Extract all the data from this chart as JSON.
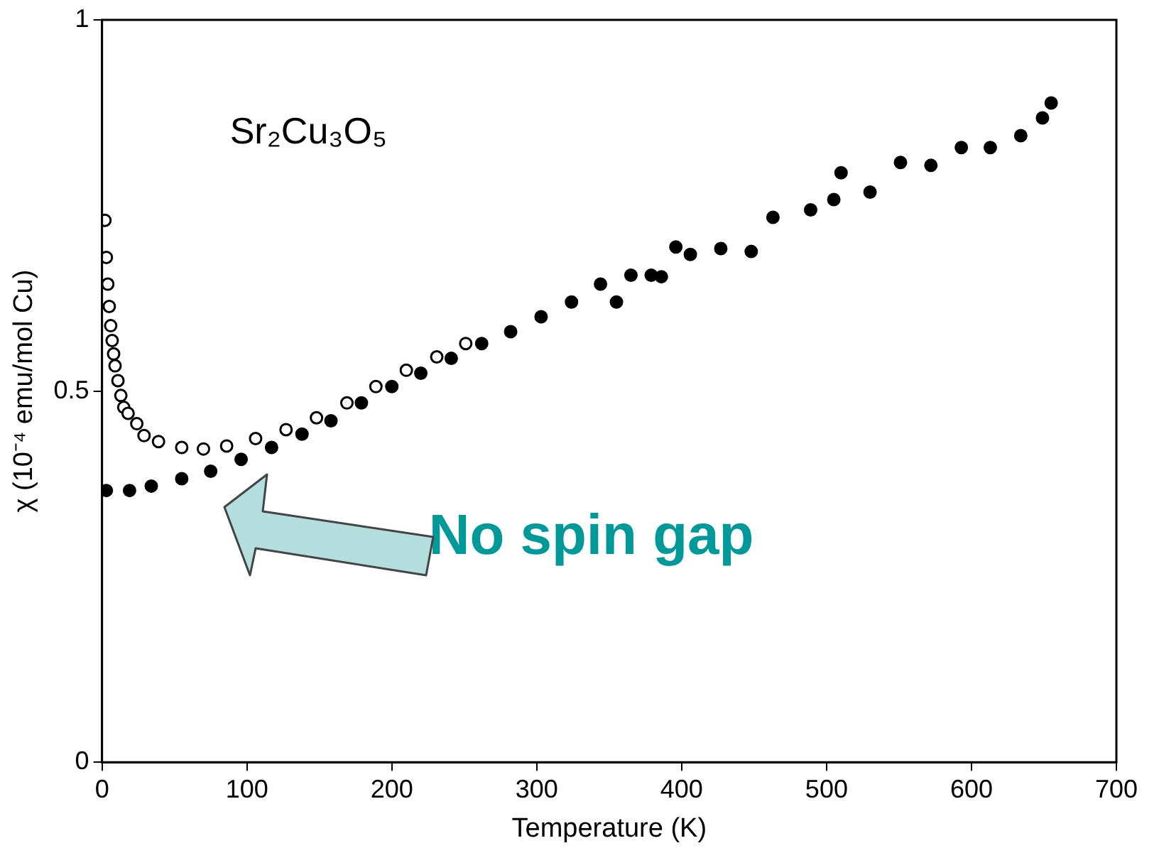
{
  "chart_data": {
    "type": "scatter",
    "xlabel": "Temperature (K)",
    "ylabel": "χ (10⁻⁴ emu/mol Cu)",
    "xlim": [
      0,
      700
    ],
    "xticks": [
      0,
      100,
      200,
      300,
      400,
      500,
      600,
      700
    ],
    "ylim": [
      0,
      1
    ],
    "yticks": [
      0,
      0.5,
      1
    ],
    "grid": false,
    "legend": false,
    "marker": "circle",
    "annotations": [
      "Sr₂Cu₃O₅",
      "No spin gap"
    ],
    "series": [
      {
        "color": "#000000",
        "x": [
          2,
          3,
          4,
          5,
          6,
          7,
          8,
          9,
          11,
          13,
          15,
          18,
          24,
          29,
          39,
          55,
          70,
          86,
          106,
          127,
          148,
          169,
          189,
          210,
          231,
          251
        ],
        "values": [
          0.73,
          0.68,
          0.644,
          0.614,
          0.588,
          0.568,
          0.55,
          0.534,
          0.514,
          0.494,
          0.478,
          0.47,
          0.456,
          0.44,
          0.432,
          0.424,
          0.422,
          0.426,
          0.436,
          0.448,
          0.464,
          0.484,
          0.506,
          0.528,
          0.546,
          0.564
        ]
      },
      {
        "color": "#000000",
        "x": [
          3,
          19,
          34,
          55,
          75,
          96,
          117,
          138,
          158,
          179,
          200,
          220,
          241,
          262,
          282,
          303,
          324,
          344,
          355,
          365,
          379,
          386,
          396,
          406,
          427,
          448,
          463,
          489,
          505,
          510,
          530,
          551,
          572,
          593,
          613,
          634,
          649,
          655
        ],
        "values": [
          0.366,
          0.366,
          0.372,
          0.382,
          0.392,
          0.408,
          0.424,
          0.442,
          0.46,
          0.484,
          0.506,
          0.524,
          0.544,
          0.564,
          0.58,
          0.6,
          0.62,
          0.644,
          0.62,
          0.656,
          0.656,
          0.654,
          0.694,
          0.684,
          0.692,
          0.688,
          0.734,
          0.744,
          0.758,
          0.794,
          0.768,
          0.808,
          0.804,
          0.828,
          0.828,
          0.844,
          0.868,
          0.888
        ]
      }
    ]
  }
}
